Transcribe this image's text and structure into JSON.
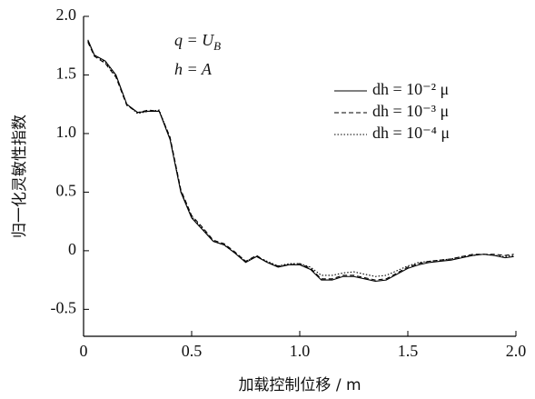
{
  "chart_data": {
    "type": "line",
    "xlabel": "加载控制位移 / m",
    "ylabel": "归一化灵敏性指数",
    "annotations": [
      {
        "text": "q = U",
        "subscript": "B"
      },
      {
        "text": "h = A"
      }
    ],
    "x": [
      0.02,
      0.05,
      0.1,
      0.15,
      0.2,
      0.25,
      0.3,
      0.35,
      0.4,
      0.45,
      0.5,
      0.55,
      0.6,
      0.65,
      0.7,
      0.75,
      0.8,
      0.85,
      0.9,
      0.95,
      1.0,
      1.05,
      1.1,
      1.15,
      1.2,
      1.25,
      1.3,
      1.35,
      1.4,
      1.45,
      1.5,
      1.55,
      1.6,
      1.65,
      1.7,
      1.75,
      1.8,
      1.85,
      1.9,
      1.95,
      1.99
    ],
    "series": [
      {
        "name": "dh = 10⁻² μ",
        "color": "#000000",
        "style": "solid",
        "values": [
          1.8,
          1.67,
          1.62,
          1.5,
          1.25,
          1.18,
          1.19,
          1.19,
          0.95,
          0.5,
          0.28,
          0.18,
          0.08,
          0.05,
          -0.02,
          -0.1,
          -0.05,
          -0.1,
          -0.14,
          -0.12,
          -0.12,
          -0.16,
          -0.25,
          -0.25,
          -0.22,
          -0.22,
          -0.24,
          -0.26,
          -0.25,
          -0.2,
          -0.15,
          -0.12,
          -0.1,
          -0.09,
          -0.08,
          -0.06,
          -0.04,
          -0.03,
          -0.04,
          -0.06,
          -0.05
        ]
      },
      {
        "name": "dh = 10⁻³ μ",
        "color": "#000000",
        "style": "dashed",
        "values": [
          1.78,
          1.66,
          1.6,
          1.48,
          1.24,
          1.18,
          1.2,
          1.19,
          0.97,
          0.52,
          0.3,
          0.2,
          0.09,
          0.06,
          -0.01,
          -0.09,
          -0.04,
          -0.1,
          -0.13,
          -0.12,
          -0.11,
          -0.15,
          -0.24,
          -0.24,
          -0.21,
          -0.21,
          -0.23,
          -0.25,
          -0.24,
          -0.19,
          -0.14,
          -0.11,
          -0.09,
          -0.08,
          -0.07,
          -0.05,
          -0.03,
          -0.03,
          -0.03,
          -0.04,
          -0.03
        ]
      },
      {
        "name": "dh = 10⁻⁴ μ",
        "color": "#000000",
        "style": "dotted",
        "values": [
          1.79,
          1.67,
          1.61,
          1.49,
          1.25,
          1.17,
          1.19,
          1.2,
          0.96,
          0.51,
          0.29,
          0.19,
          0.08,
          0.05,
          -0.02,
          -0.09,
          -0.05,
          -0.09,
          -0.13,
          -0.11,
          -0.11,
          -0.14,
          -0.21,
          -0.21,
          -0.19,
          -0.18,
          -0.2,
          -0.22,
          -0.21,
          -0.17,
          -0.13,
          -0.1,
          -0.09,
          -0.08,
          -0.07,
          -0.05,
          -0.04,
          -0.03,
          -0.04,
          -0.05,
          -0.04
        ]
      }
    ],
    "xlim": [
      0,
      2
    ],
    "xticks": [
      0,
      0.5,
      {
        "value": 1,
        "label": "1.0"
      },
      1.5,
      {
        "value": 2,
        "label": "2.0"
      }
    ],
    "ylim": [
      -0.73,
      2.0
    ],
    "yticks": [
      -0.5,
      0,
      0.5,
      {
        "value": 1,
        "label": "1.0"
      },
      1.5,
      {
        "value": 2,
        "label": "2.0"
      }
    ],
    "grid": false
  }
}
